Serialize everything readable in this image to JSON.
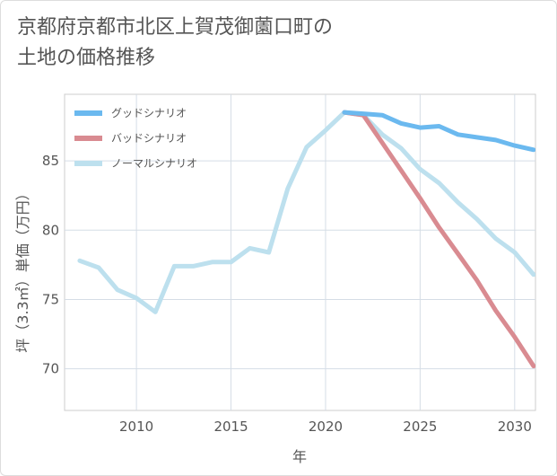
{
  "chart_data": {
    "type": "line",
    "title": "京都府京都市北区上賀茂御薗口町の\n土地の価格推移",
    "xlabel": "年",
    "ylabel": "坪（3.3㎡）単価（万円）",
    "xlim": [
      2006.2,
      2031.1
    ],
    "ylim": [
      67,
      89.8
    ],
    "x_ticks": [
      2010,
      2015,
      2020,
      2025,
      2030
    ],
    "y_ticks": [
      70,
      75,
      80,
      85
    ],
    "grid": true,
    "legend_position": "top-left",
    "series": [
      {
        "name": "グッドシナリオ",
        "color": "#6bb9ef",
        "x": [
          2021,
          2022,
          2023,
          2024,
          2025,
          2026,
          2027,
          2028,
          2029,
          2030,
          2031
        ],
        "values": [
          88.5,
          88.4,
          88.3,
          87.7,
          87.4,
          87.5,
          86.9,
          86.7,
          86.5,
          86.1,
          85.8
        ]
      },
      {
        "name": "バッドシナリオ",
        "color": "#d98b91",
        "x": [
          2021,
          2022,
          2023,
          2024,
          2025,
          2026,
          2027,
          2028,
          2029,
          2030,
          2031
        ],
        "values": [
          88.5,
          88.3,
          86.3,
          84.3,
          82.3,
          80.2,
          78.3,
          76.4,
          74.2,
          72.3,
          70.2
        ]
      },
      {
        "name": "ノーマルシナリオ",
        "color": "#bde0ee",
        "x": [
          2007,
          2008,
          2009,
          2010,
          2011,
          2012,
          2013,
          2014,
          2015,
          2016,
          2017,
          2018,
          2019,
          2020,
          2021,
          2022,
          2023,
          2024,
          2025,
          2026,
          2027,
          2028,
          2029,
          2030,
          2031
        ],
        "values": [
          77.8,
          77.3,
          75.7,
          75.1,
          74.1,
          77.4,
          77.4,
          77.7,
          77.7,
          78.7,
          78.4,
          83.0,
          86.0,
          87.2,
          88.5,
          88.3,
          86.9,
          85.9,
          84.4,
          83.4,
          82.0,
          80.8,
          79.4,
          78.4,
          76.8
        ]
      }
    ]
  }
}
